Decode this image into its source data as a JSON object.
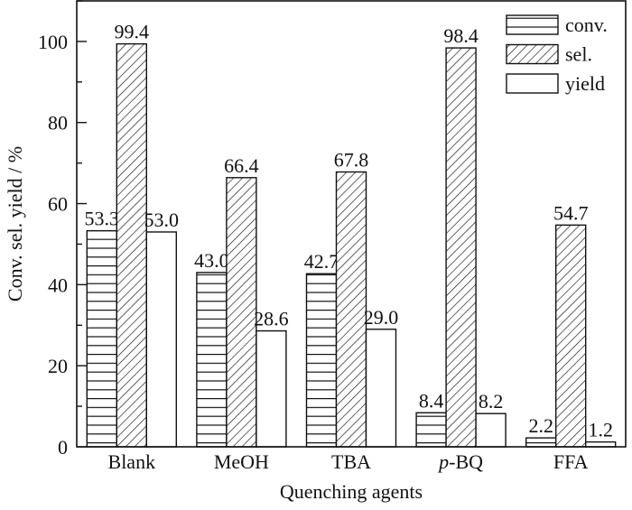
{
  "chart_data": {
    "type": "bar",
    "title": "",
    "xlabel": "Quenching agents",
    "ylabel": "Conv. sel. yield / %",
    "ylim": [
      0,
      110
    ],
    "yticks": [
      0,
      20,
      40,
      60,
      80,
      100
    ],
    "categories": [
      "Blank",
      "MeOH",
      "TBA",
      "p-BQ",
      "FFA"
    ],
    "series": [
      {
        "name": "conv.",
        "pattern": "horizontal-lines",
        "values": [
          53.3,
          43.0,
          42.7,
          8.4,
          2.2
        ],
        "labels": [
          "53.3",
          "43.0",
          "42.7",
          "8.4",
          "2.2"
        ]
      },
      {
        "name": "sel.",
        "pattern": "diagonal-hatch",
        "values": [
          99.4,
          66.4,
          67.8,
          98.4,
          54.7
        ],
        "labels": [
          "99.4",
          "66.4",
          "67.8",
          "98.4",
          "54.7"
        ]
      },
      {
        "name": "yield",
        "pattern": "empty",
        "values": [
          53.0,
          28.6,
          29.0,
          8.2,
          1.2
        ],
        "labels": [
          "53.0",
          "28.6",
          "29.0",
          "8.2",
          "1.2"
        ]
      }
    ],
    "legend_position": "top-right",
    "grid": false,
    "colors": {
      "stroke": "#111111",
      "fill": "#ffffff"
    }
  }
}
